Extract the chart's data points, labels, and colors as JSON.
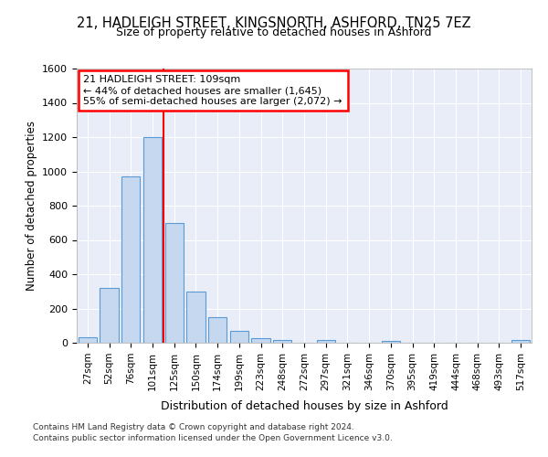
{
  "title1": "21, HADLEIGH STREET, KINGSNORTH, ASHFORD, TN25 7EZ",
  "title2": "Size of property relative to detached houses in Ashford",
  "xlabel": "Distribution of detached houses by size in Ashford",
  "ylabel": "Number of detached properties",
  "bar_categories": [
    "27sqm",
    "52sqm",
    "76sqm",
    "101sqm",
    "125sqm",
    "150sqm",
    "174sqm",
    "199sqm",
    "223sqm",
    "248sqm",
    "272sqm",
    "297sqm",
    "321sqm",
    "346sqm",
    "370sqm",
    "395sqm",
    "419sqm",
    "444sqm",
    "468sqm",
    "493sqm",
    "517sqm"
  ],
  "bar_values": [
    30,
    320,
    970,
    1200,
    700,
    300,
    150,
    70,
    25,
    15,
    0,
    15,
    0,
    0,
    10,
    0,
    0,
    0,
    0,
    0,
    15
  ],
  "bar_color": "#c5d8f0",
  "bar_edge_color": "#5b9bd5",
  "vline_x": 3.5,
  "vline_color": "red",
  "ylim": [
    0,
    1600
  ],
  "annotation_text_line1": "21 HADLEIGH STREET: 109sqm",
  "annotation_text_line2": "← 44% of detached houses are smaller (1,645)",
  "annotation_text_line3": "55% of semi-detached houses are larger (2,072) →",
  "annotation_box_color": "red",
  "footer_line1": "Contains HM Land Registry data © Crown copyright and database right 2024.",
  "footer_line2": "Contains public sector information licensed under the Open Government Licence v3.0.",
  "bg_color": "#ffffff",
  "plot_bg_color": "#e8edf8"
}
